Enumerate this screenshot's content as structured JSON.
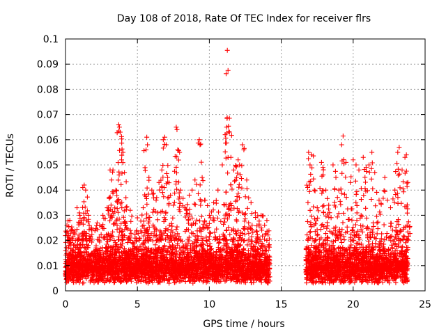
{
  "chart_data": {
    "type": "scatter",
    "title": "Day 108 of 2018, Rate Of TEC Index for receiver flrs",
    "xlabel": "GPS time / hours",
    "ylabel": "ROTI / TECUs",
    "xlim": [
      0,
      25
    ],
    "ylim": [
      0,
      0.1
    ],
    "xticks": [
      "0",
      "5",
      "10",
      "15",
      "20",
      "25"
    ],
    "yticks": [
      "0",
      "0.01",
      "0.02",
      "0.03",
      "0.04",
      "0.05",
      "0.06",
      "0.07",
      "0.08",
      "0.09",
      "0.1"
    ],
    "grid": true,
    "marker": "plus",
    "color": "#ff0000",
    "coverage": [
      [
        0.0,
        14.2
      ],
      [
        16.7,
        23.8
      ]
    ],
    "baseline_range": [
      0.003,
      0.02
    ],
    "series": [
      {
        "name": "ROTI",
        "points": [
          [
            0.1,
            0.026
          ],
          [
            0.3,
            0.028
          ],
          [
            0.5,
            0.024
          ],
          [
            0.8,
            0.033
          ],
          [
            1.0,
            0.03
          ],
          [
            1.2,
            0.041
          ],
          [
            1.3,
            0.042
          ],
          [
            1.4,
            0.04
          ],
          [
            1.6,
            0.03
          ],
          [
            1.8,
            0.025
          ],
          [
            2.2,
            0.027
          ],
          [
            2.6,
            0.03
          ],
          [
            2.9,
            0.033
          ],
          [
            3.1,
            0.048
          ],
          [
            3.2,
            0.044
          ],
          [
            3.3,
            0.048
          ],
          [
            3.5,
            0.04
          ],
          [
            3.7,
            0.066
          ],
          [
            3.75,
            0.065
          ],
          [
            3.8,
            0.063
          ],
          [
            3.9,
            0.052
          ],
          [
            4.0,
            0.055
          ],
          [
            4.1,
            0.047
          ],
          [
            4.2,
            0.037
          ],
          [
            4.5,
            0.032
          ],
          [
            5.0,
            0.029
          ],
          [
            5.4,
            0.033
          ],
          [
            5.6,
            0.056
          ],
          [
            5.65,
            0.061
          ],
          [
            5.7,
            0.058
          ],
          [
            5.8,
            0.045
          ],
          [
            6.0,
            0.04
          ],
          [
            6.3,
            0.036
          ],
          [
            6.5,
            0.043
          ],
          [
            6.7,
            0.048
          ],
          [
            6.8,
            0.06
          ],
          [
            6.9,
            0.061
          ],
          [
            7.0,
            0.058
          ],
          [
            7.1,
            0.045
          ],
          [
            7.3,
            0.038
          ],
          [
            7.5,
            0.034
          ],
          [
            7.7,
            0.065
          ],
          [
            7.75,
            0.064
          ],
          [
            7.8,
            0.056
          ],
          [
            8.0,
            0.04
          ],
          [
            8.3,
            0.033
          ],
          [
            8.6,
            0.038
          ],
          [
            8.8,
            0.04
          ],
          [
            9.0,
            0.044
          ],
          [
            9.3,
            0.06
          ],
          [
            9.35,
            0.058
          ],
          [
            9.5,
            0.045
          ],
          [
            9.7,
            0.036
          ],
          [
            10.0,
            0.03
          ],
          [
            10.3,
            0.035
          ],
          [
            10.6,
            0.04
          ],
          [
            10.9,
            0.05
          ],
          [
            11.1,
            0.062
          ],
          [
            11.2,
            0.065
          ],
          [
            11.25,
            0.0955
          ],
          [
            11.3,
            0.0875
          ],
          [
            11.4,
            0.063
          ],
          [
            11.5,
            0.053
          ],
          [
            11.7,
            0.048
          ],
          [
            11.9,
            0.045
          ],
          [
            12.0,
            0.052
          ],
          [
            12.1,
            0.05
          ],
          [
            12.3,
            0.058
          ],
          [
            12.4,
            0.056
          ],
          [
            12.6,
            0.044
          ],
          [
            12.9,
            0.035
          ],
          [
            13.2,
            0.031
          ],
          [
            13.6,
            0.03
          ],
          [
            14.0,
            0.028
          ],
          [
            16.9,
            0.055
          ],
          [
            17.0,
            0.05
          ],
          [
            17.1,
            0.054
          ],
          [
            17.3,
            0.04
          ],
          [
            17.5,
            0.033
          ],
          [
            17.8,
            0.051
          ],
          [
            17.9,
            0.049
          ],
          [
            18.1,
            0.04
          ],
          [
            18.3,
            0.034
          ],
          [
            18.6,
            0.05
          ],
          [
            18.8,
            0.045
          ],
          [
            19.0,
            0.04
          ],
          [
            19.2,
            0.058
          ],
          [
            19.3,
            0.0615
          ],
          [
            19.5,
            0.051
          ],
          [
            19.8,
            0.043
          ],
          [
            20.0,
            0.052
          ],
          [
            20.2,
            0.05
          ],
          [
            20.4,
            0.048
          ],
          [
            20.7,
            0.053
          ],
          [
            20.9,
            0.049
          ],
          [
            21.1,
            0.05
          ],
          [
            21.3,
            0.055
          ],
          [
            21.5,
            0.047
          ],
          [
            21.8,
            0.036
          ],
          [
            22.2,
            0.045
          ],
          [
            22.6,
            0.033
          ],
          [
            22.9,
            0.04
          ],
          [
            23.1,
            0.055
          ],
          [
            23.2,
            0.057
          ],
          [
            23.4,
            0.048
          ],
          [
            23.6,
            0.053
          ],
          [
            23.7,
            0.054
          ],
          [
            23.8,
            0.043
          ]
        ]
      }
    ]
  }
}
